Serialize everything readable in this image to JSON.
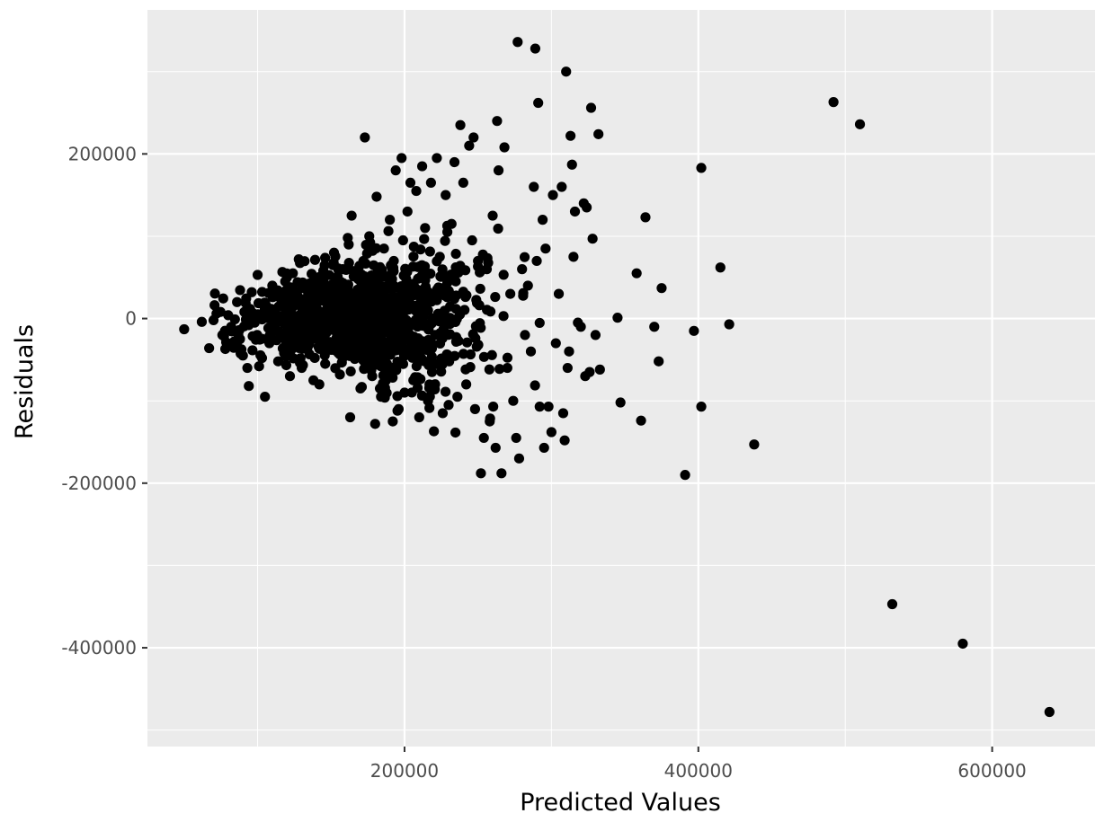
{
  "chart_data": {
    "type": "scatter",
    "title": "",
    "xlabel": "Predicted Values",
    "ylabel": "Residuals",
    "xlim": [
      25000,
      670000
    ],
    "ylim": [
      -520000,
      375000
    ],
    "x_ticks": [
      200000,
      400000,
      600000
    ],
    "x_tick_labels": [
      "200000",
      "400000",
      "600000"
    ],
    "y_ticks": [
      -400000,
      -200000,
      0,
      200000
    ],
    "y_tick_labels": [
      "-400000",
      "-200000",
      "0",
      "200000"
    ],
    "grid": true,
    "legend": "none",
    "colors": {
      "panel": "#ebebeb",
      "grid": "#ffffff",
      "point": "#000000"
    },
    "points": [
      [
        50000,
        -13000
      ],
      [
        62000,
        -4000
      ],
      [
        67000,
        -36000
      ],
      [
        70000,
        -2000
      ],
      [
        72000,
        6000
      ],
      [
        76000,
        -20000
      ],
      [
        78000,
        -37000
      ],
      [
        80000,
        4000
      ],
      [
        82000,
        -10000
      ],
      [
        84000,
        -28000
      ],
      [
        86000,
        20000
      ],
      [
        88000,
        -25000
      ],
      [
        90000,
        -45000
      ],
      [
        91000,
        8000
      ],
      [
        93000,
        -60000
      ],
      [
        94000,
        -82000
      ],
      [
        96000,
        32000
      ],
      [
        98000,
        -5000
      ],
      [
        100000,
        53000
      ],
      [
        101000,
        -58000
      ],
      [
        103000,
        -48000
      ],
      [
        105000,
        -95000
      ],
      [
        106000,
        15000
      ],
      [
        108000,
        -30000
      ],
      [
        110000,
        40000
      ],
      [
        112000,
        -12000
      ],
      [
        114000,
        -52000
      ],
      [
        116000,
        25000
      ],
      [
        118000,
        -42000
      ],
      [
        120000,
        5000
      ],
      [
        122000,
        -70000
      ],
      [
        124000,
        55000
      ],
      [
        126000,
        -18000
      ],
      [
        128000,
        72000
      ],
      [
        130000,
        -60000
      ],
      [
        132000,
        10000
      ],
      [
        134000,
        -35000
      ],
      [
        136000,
        30000
      ],
      [
        138000,
        -75000
      ],
      [
        140000,
        -8000
      ],
      [
        142000,
        -80000
      ],
      [
        144000,
        45000
      ],
      [
        146000,
        -55000
      ],
      [
        148000,
        20000
      ],
      [
        150000,
        -38000
      ],
      [
        152000,
        80000
      ],
      [
        154000,
        -25000
      ],
      [
        156000,
        -68000
      ],
      [
        158000,
        60000
      ],
      [
        160000,
        -15000
      ],
      [
        162000,
        90000
      ],
      [
        163000,
        -120000
      ],
      [
        164000,
        125000
      ],
      [
        166000,
        -45000
      ],
      [
        168000,
        35000
      ],
      [
        170000,
        -85000
      ],
      [
        172000,
        70000
      ],
      [
        173000,
        220000
      ],
      [
        174000,
        -30000
      ],
      [
        176000,
        100000
      ],
      [
        178000,
        -70000
      ],
      [
        180000,
        -128000
      ],
      [
        181000,
        148000
      ],
      [
        182000,
        50000
      ],
      [
        184000,
        -95000
      ],
      [
        186000,
        85000
      ],
      [
        188000,
        -55000
      ],
      [
        190000,
        120000
      ],
      [
        192000,
        -125000
      ],
      [
        194000,
        180000
      ],
      [
        196000,
        -110000
      ],
      [
        198000,
        195000
      ],
      [
        199000,
        95000
      ],
      [
        200000,
        -90000
      ],
      [
        202000,
        130000
      ],
      [
        204000,
        165000
      ],
      [
        206000,
        -75000
      ],
      [
        208000,
        155000
      ],
      [
        210000,
        -120000
      ],
      [
        212000,
        185000
      ],
      [
        214000,
        110000
      ],
      [
        216000,
        -100000
      ],
      [
        218000,
        165000
      ],
      [
        220000,
        -137000
      ],
      [
        222000,
        195000
      ],
      [
        224000,
        75000
      ],
      [
        226000,
        -115000
      ],
      [
        228000,
        150000
      ],
      [
        230000,
        -105000
      ],
      [
        232000,
        115000
      ],
      [
        234000,
        190000
      ],
      [
        236000,
        -95000
      ],
      [
        238000,
        235000
      ],
      [
        240000,
        165000
      ],
      [
        242000,
        -80000
      ],
      [
        244000,
        210000
      ],
      [
        246000,
        95000
      ],
      [
        247000,
        220000
      ],
      [
        248000,
        -110000
      ],
      [
        250000,
        70000
      ],
      [
        252000,
        -188000
      ],
      [
        254000,
        -145000
      ],
      [
        256000,
        60000
      ],
      [
        258000,
        -125000
      ],
      [
        260000,
        125000
      ],
      [
        262000,
        -157000
      ],
      [
        263000,
        240000
      ],
      [
        264000,
        180000
      ],
      [
        266000,
        -188000
      ],
      [
        268000,
        208000
      ],
      [
        270000,
        -60000
      ],
      [
        272000,
        30000
      ],
      [
        274000,
        -100000
      ],
      [
        276000,
        -145000
      ],
      [
        277000,
        336000
      ],
      [
        278000,
        -170000
      ],
      [
        280000,
        60000
      ],
      [
        282000,
        -20000
      ],
      [
        284000,
        40000
      ],
      [
        286000,
        -40000
      ],
      [
        288000,
        160000
      ],
      [
        289000,
        328000
      ],
      [
        290000,
        70000
      ],
      [
        291000,
        262000
      ],
      [
        292000,
        -107000
      ],
      [
        294000,
        120000
      ],
      [
        295000,
        -157000
      ],
      [
        296000,
        85000
      ],
      [
        298000,
        -107000
      ],
      [
        300000,
        -138000
      ],
      [
        301000,
        150000
      ],
      [
        303000,
        -30000
      ],
      [
        305000,
        30000
      ],
      [
        307000,
        160000
      ],
      [
        308000,
        -115000
      ],
      [
        309000,
        -148000
      ],
      [
        310000,
        300000
      ],
      [
        311000,
        -60000
      ],
      [
        312000,
        -40000
      ],
      [
        313000,
        222000
      ],
      [
        314000,
        187000
      ],
      [
        315000,
        75000
      ],
      [
        316000,
        130000
      ],
      [
        318000,
        -5000
      ],
      [
        320000,
        -10000
      ],
      [
        322000,
        140000
      ],
      [
        323000,
        -70000
      ],
      [
        324000,
        135000
      ],
      [
        326000,
        -65000
      ],
      [
        327000,
        256000
      ],
      [
        328000,
        97000
      ],
      [
        330000,
        -20000
      ],
      [
        332000,
        224000
      ],
      [
        333000,
        -62000
      ],
      [
        345000,
        1000
      ],
      [
        347000,
        -102000
      ],
      [
        358000,
        55000
      ],
      [
        361000,
        -124000
      ],
      [
        364000,
        123000
      ],
      [
        370000,
        -10000
      ],
      [
        373000,
        -52000
      ],
      [
        375000,
        37000
      ],
      [
        391000,
        -190000
      ],
      [
        397000,
        -15000
      ],
      [
        402000,
        183000
      ],
      [
        402000,
        -107000
      ],
      [
        415000,
        62000
      ],
      [
        421000,
        -7000
      ],
      [
        438000,
        -153000
      ],
      [
        492000,
        263000
      ],
      [
        510000,
        236000
      ],
      [
        532000,
        -347000
      ],
      [
        580000,
        -395000
      ],
      [
        639000,
        -478000
      ]
    ],
    "dense_cloud_note": ""
  }
}
